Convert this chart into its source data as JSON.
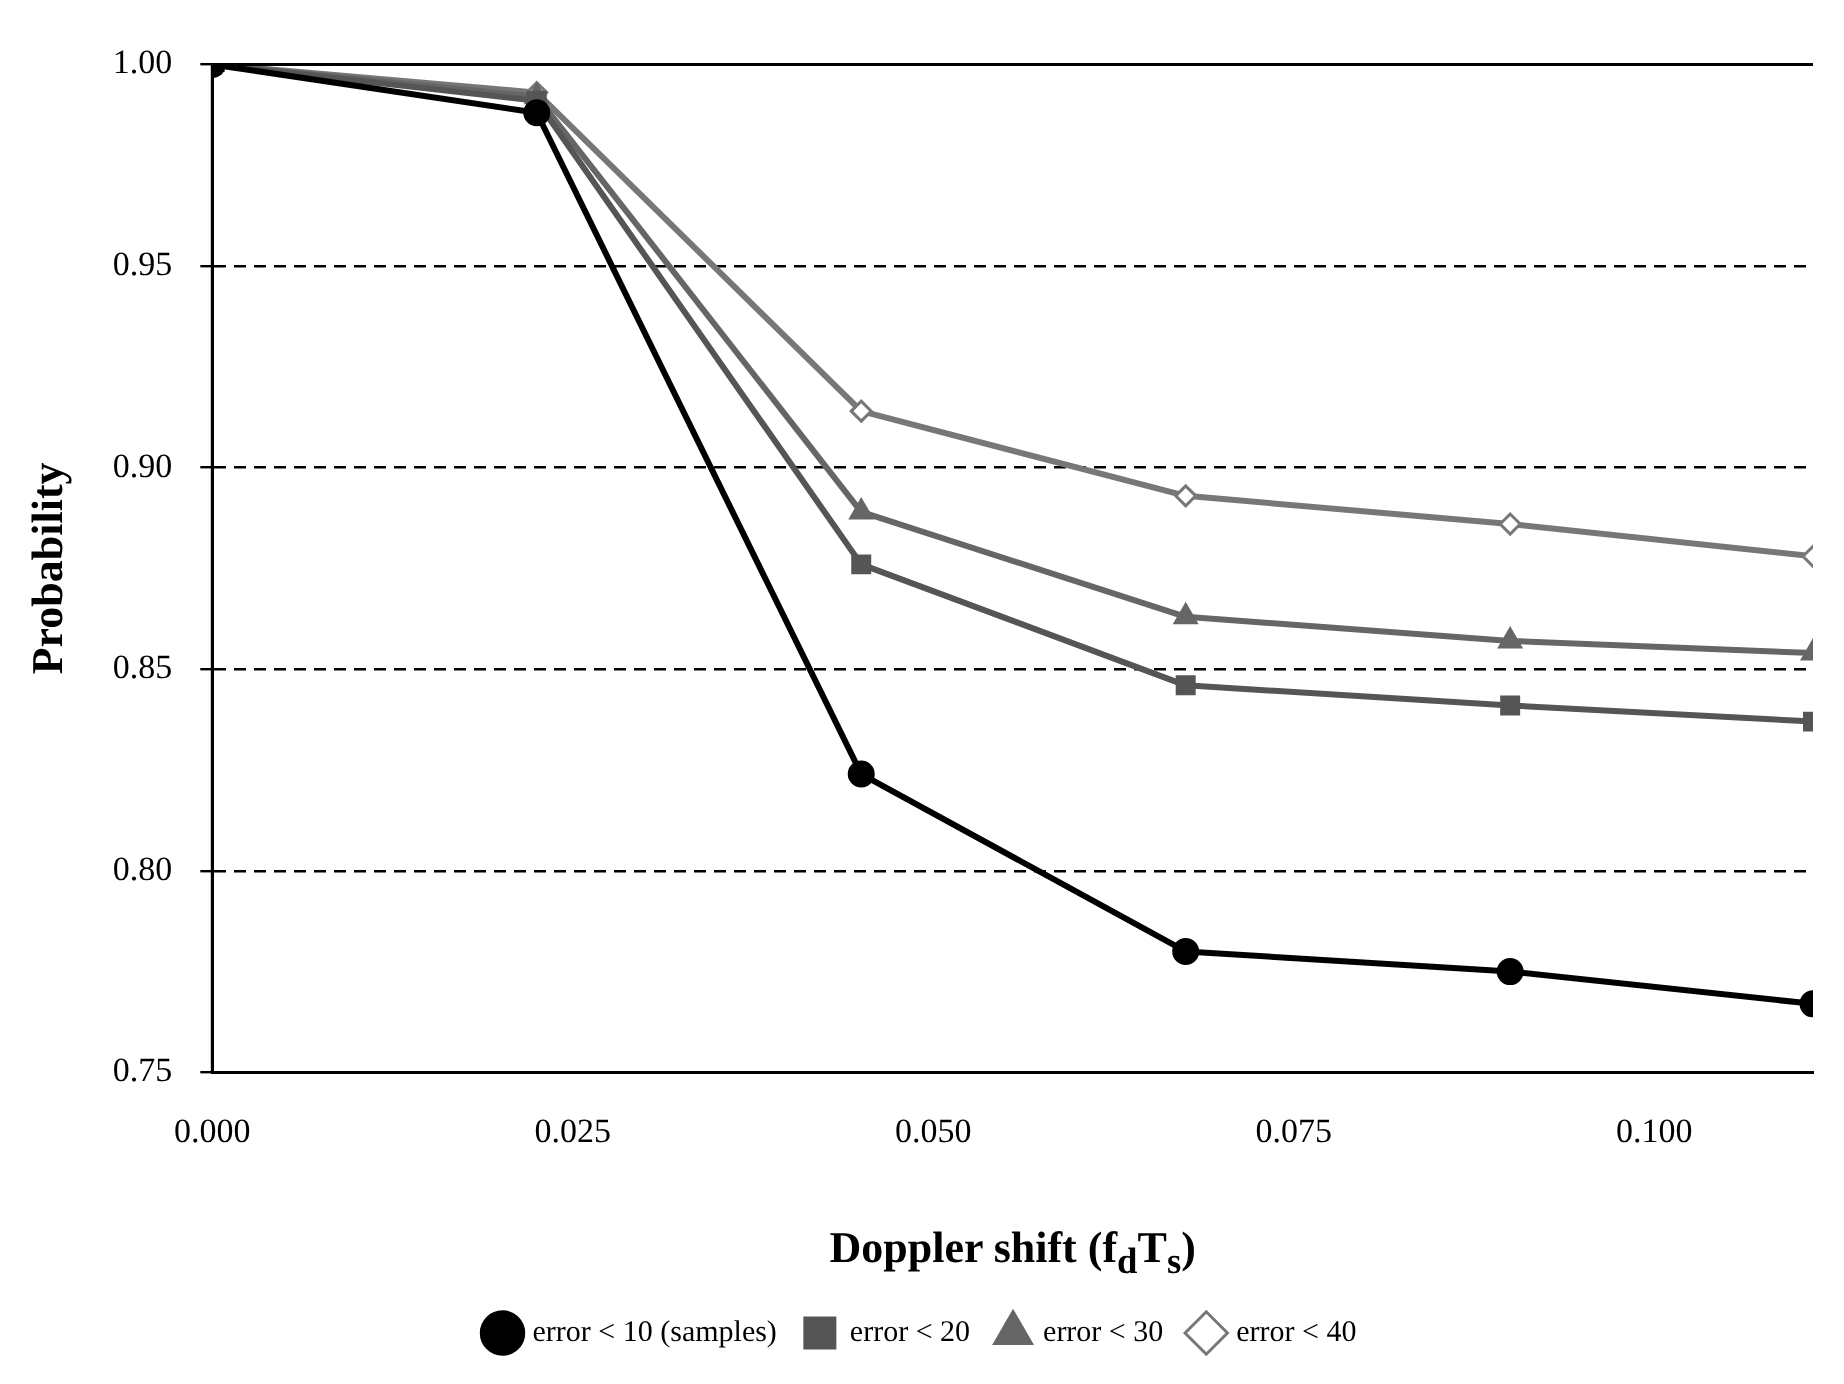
{
  "chart_data": {
    "type": "line",
    "xlabel": "Doppler shift (f$_{d}$T$_{s}$)",
    "ylabel": "Probability",
    "xlim": [
      0,
      0.111
    ],
    "xticks": [
      {
        "value": 0,
        "label": "0.000"
      },
      {
        "value": 0.025,
        "label": "0.025"
      },
      {
        "value": 0.05,
        "label": "0.050"
      },
      {
        "value": 0.075,
        "label": "0.075"
      },
      {
        "value": 0.1,
        "label": "0.100"
      }
    ],
    "ylim": [
      0.75,
      1.0
    ],
    "yticks": [
      0.75,
      {
        "value": 0.8,
        "label": "0.80"
      },
      0.85,
      {
        "value": 0.9,
        "label": "0.90"
      },
      0.95,
      {
        "value": 1.0,
        "label": "1.00"
      }
    ],
    "grid": "y",
    "line_style": "solid",
    "legend": "bottom",
    "x": [
      0,
      0.0225,
      0.045,
      0.0675,
      0.09,
      0.111
    ],
    "series": [
      {
        "name": "error < 10 (samples)",
        "color": "#000000",
        "marker": "circle",
        "values": [
          1.0,
          0.988,
          0.824,
          0.78,
          0.775,
          0.767
        ]
      },
      {
        "name": "error < 20",
        "color": "#555555",
        "marker": "square",
        "values": [
          1.0,
          0.991,
          0.876,
          0.846,
          0.841,
          0.837
        ]
      },
      {
        "name": "error < 30",
        "color": "#666666",
        "marker": "triangle",
        "values": [
          1.0,
          0.992,
          0.889,
          0.863,
          0.857,
          0.854
        ]
      },
      {
        "name": "error < 40",
        "color": "#777777",
        "marker": "diamond",
        "values": [
          1.0,
          0.993,
          0.914,
          0.893,
          0.886,
          0.878
        ]
      }
    ]
  }
}
